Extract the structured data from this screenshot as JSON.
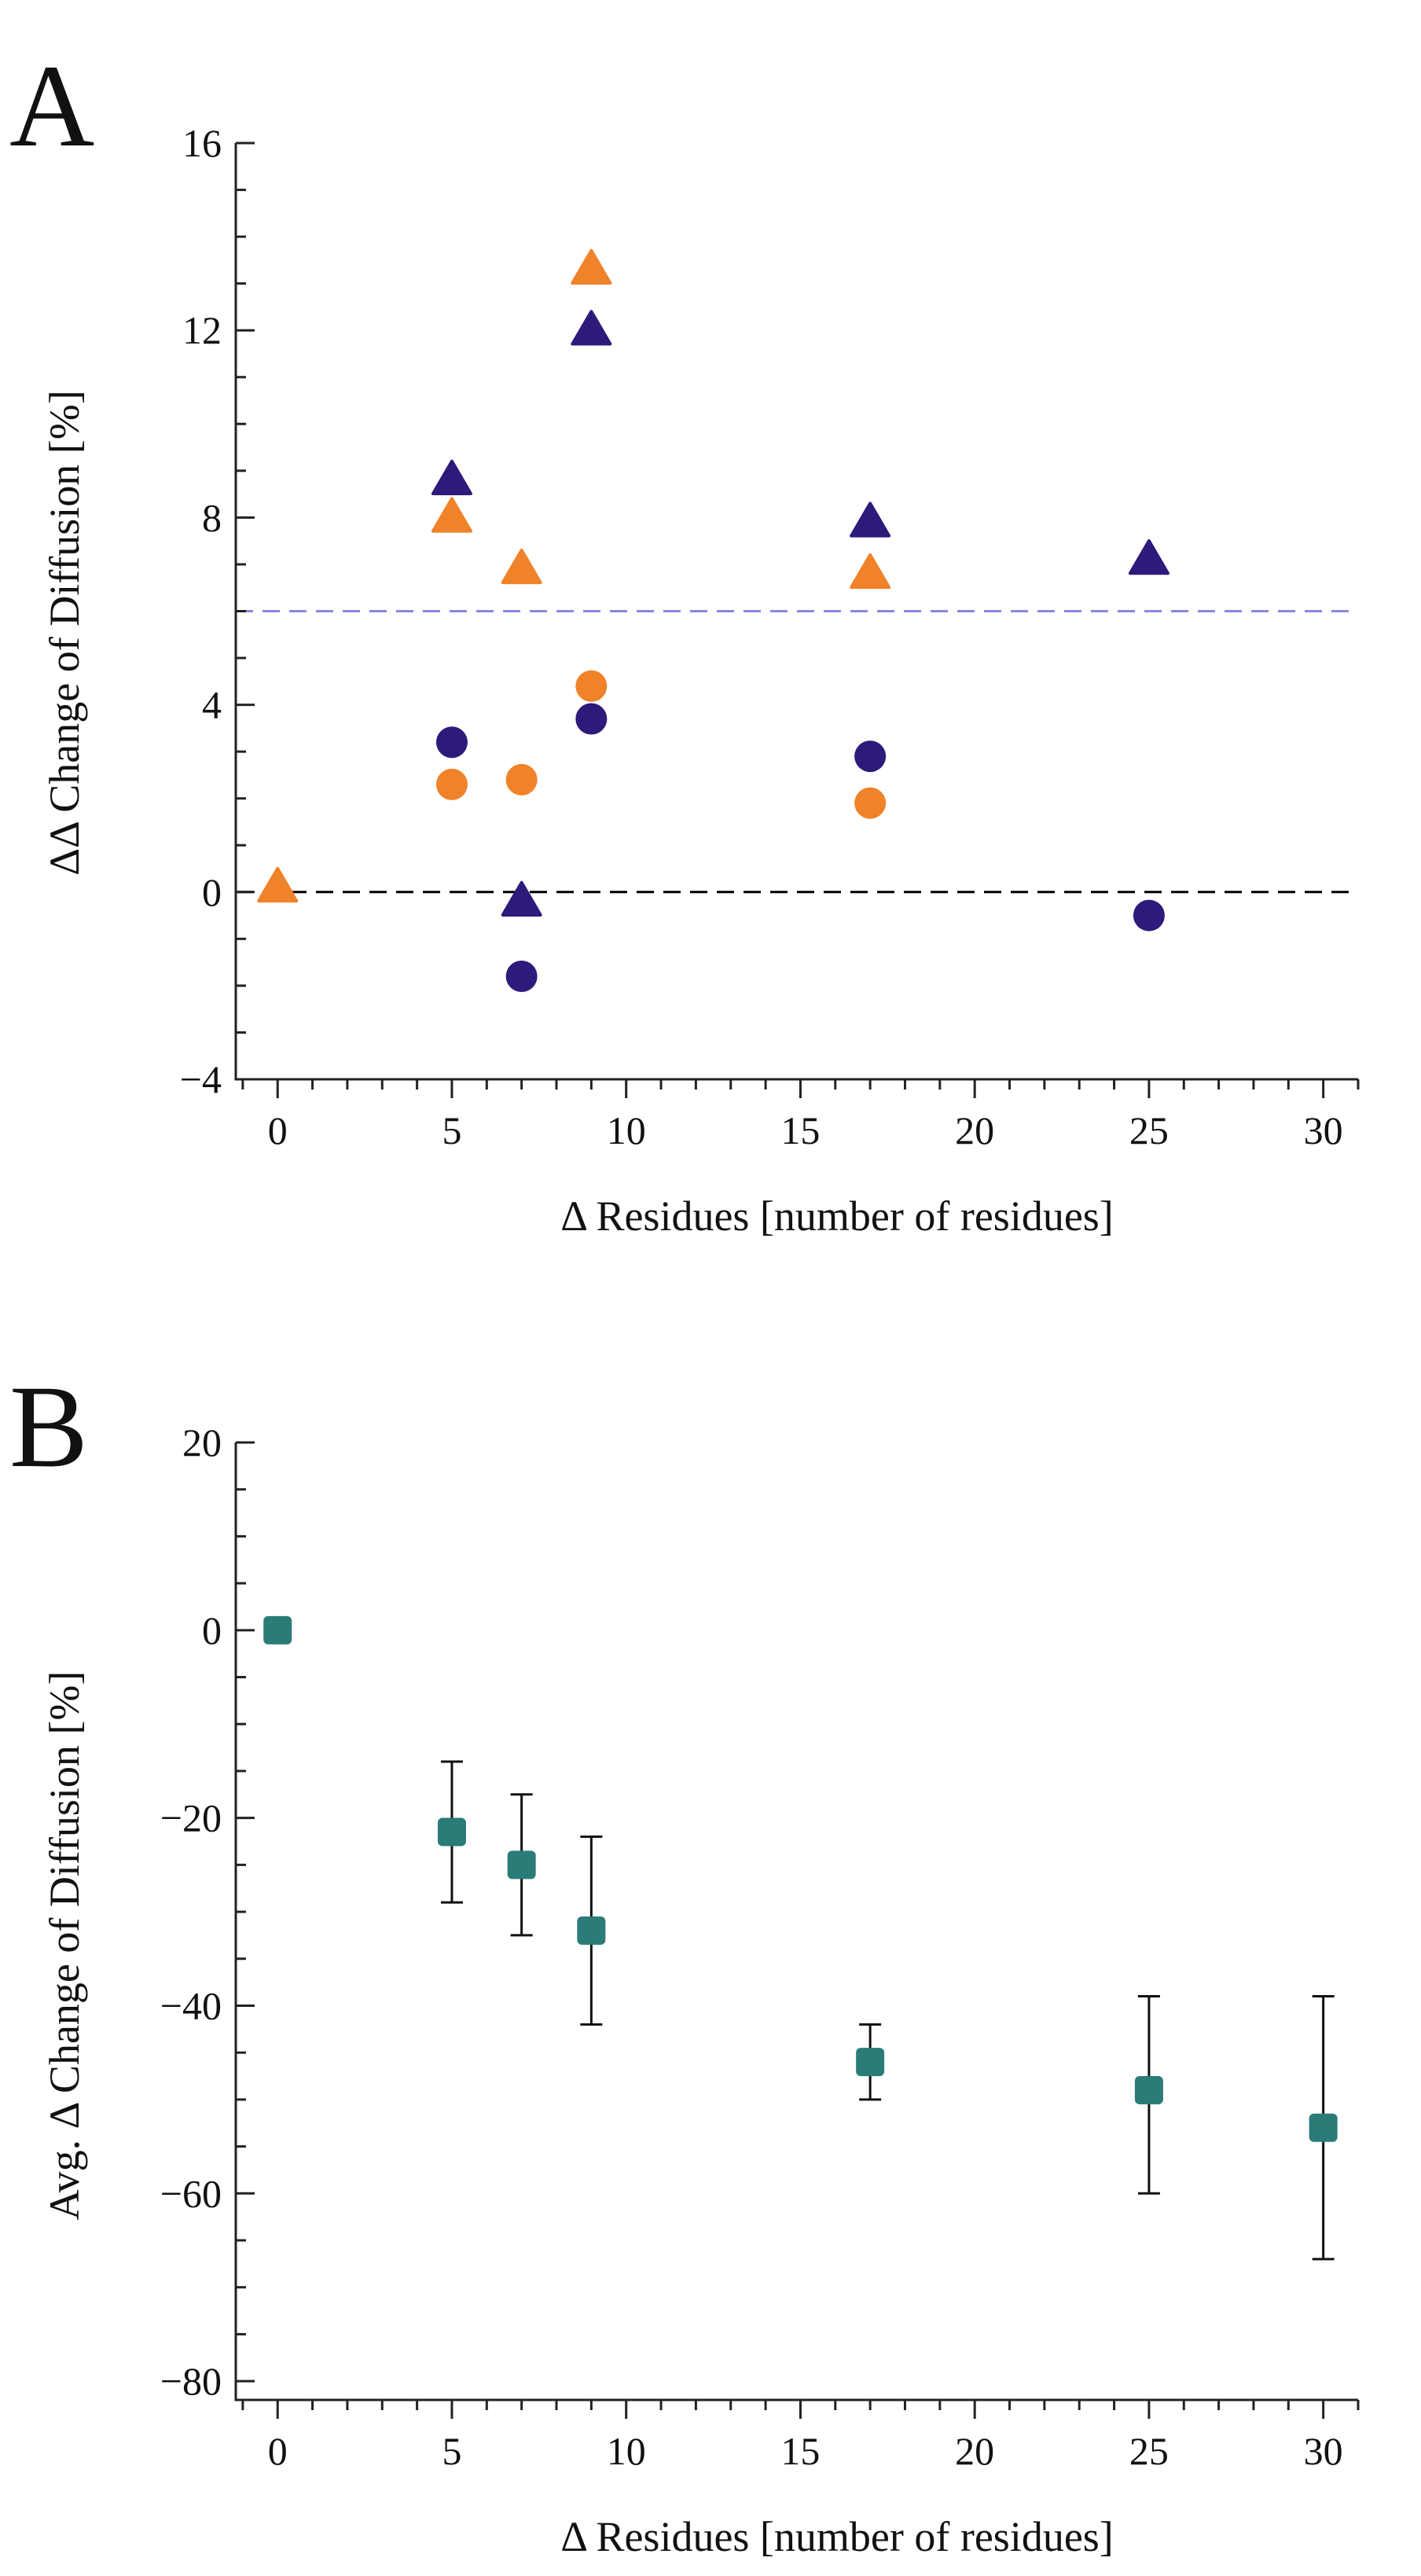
{
  "panels": [
    {
      "panel_label": "A"
    },
    {
      "panel_label": "B"
    }
  ],
  "chart_data": [
    {
      "type": "scatter",
      "title": "",
      "xlabel": "Δ Residues [number of residues]",
      "ylabel": "ΔΔ Change of Diffusion [%]",
      "xlim": [
        -1.2,
        31
      ],
      "ylim": [
        -4,
        16
      ],
      "xticks": [
        0,
        5,
        10,
        15,
        20,
        25,
        30
      ],
      "yticks": [
        -4,
        0,
        4,
        8,
        12,
        16
      ],
      "xtick_labels": [
        "0",
        "5",
        "10",
        "15",
        "20",
        "25",
        "30"
      ],
      "ytick_labels": [
        "−4",
        "0",
        "4",
        "8",
        "12",
        "16"
      ],
      "grid": false,
      "reference_lines": [
        {
          "y": 0,
          "style": "dashed",
          "color": "#000000"
        },
        {
          "y": 6,
          "style": "dashed",
          "color": "#8888dd"
        }
      ],
      "series": [
        {
          "marker": "triangle",
          "color": "#2e1a7a",
          "x": [
            5,
            7,
            9,
            17,
            25
          ],
          "y": [
            8.8,
            -0.2,
            12.0,
            7.9,
            7.1
          ]
        },
        {
          "marker": "triangle",
          "color": "#f0822a",
          "x": [
            0,
            5,
            7,
            9,
            17
          ],
          "y": [
            0.1,
            8.0,
            6.9,
            13.3,
            6.8
          ]
        },
        {
          "marker": "circle",
          "color": "#2e1a7a",
          "x": [
            5,
            7,
            9,
            17,
            25
          ],
          "y": [
            3.2,
            -1.8,
            3.7,
            2.9,
            -0.5
          ]
        },
        {
          "marker": "circle",
          "color": "#f0822a",
          "x": [
            5,
            7,
            9,
            17
          ],
          "y": [
            2.3,
            2.4,
            4.4,
            1.9
          ]
        }
      ]
    },
    {
      "type": "scatter",
      "title": "",
      "xlabel": "Δ Residues [number of residues]",
      "ylabel": "Avg. Δ Change of Diffusion [%]",
      "xlim": [
        -1.2,
        31
      ],
      "ylim": [
        -82,
        20
      ],
      "xticks": [
        0,
        5,
        10,
        15,
        20,
        25,
        30
      ],
      "yticks": [
        -80,
        -60,
        -40,
        -20,
        0,
        20
      ],
      "xtick_labels": [
        "0",
        "5",
        "10",
        "15",
        "20",
        "25",
        "30"
      ],
      "ytick_labels": [
        "−80",
        "−60",
        "−40",
        "−20",
        "0",
        "20"
      ],
      "grid": false,
      "series": [
        {
          "marker": "square",
          "color": "#2b7b78",
          "x": [
            0,
            5,
            7,
            9,
            17,
            25,
            30
          ],
          "y": [
            0,
            -21.5,
            -25,
            -32,
            -46,
            -49,
            -53
          ],
          "err_low": [
            0,
            7.5,
            7.5,
            10,
            4,
            11,
            14
          ],
          "err_high": [
            0,
            7.5,
            7.5,
            10,
            4,
            10,
            14
          ]
        }
      ]
    }
  ]
}
